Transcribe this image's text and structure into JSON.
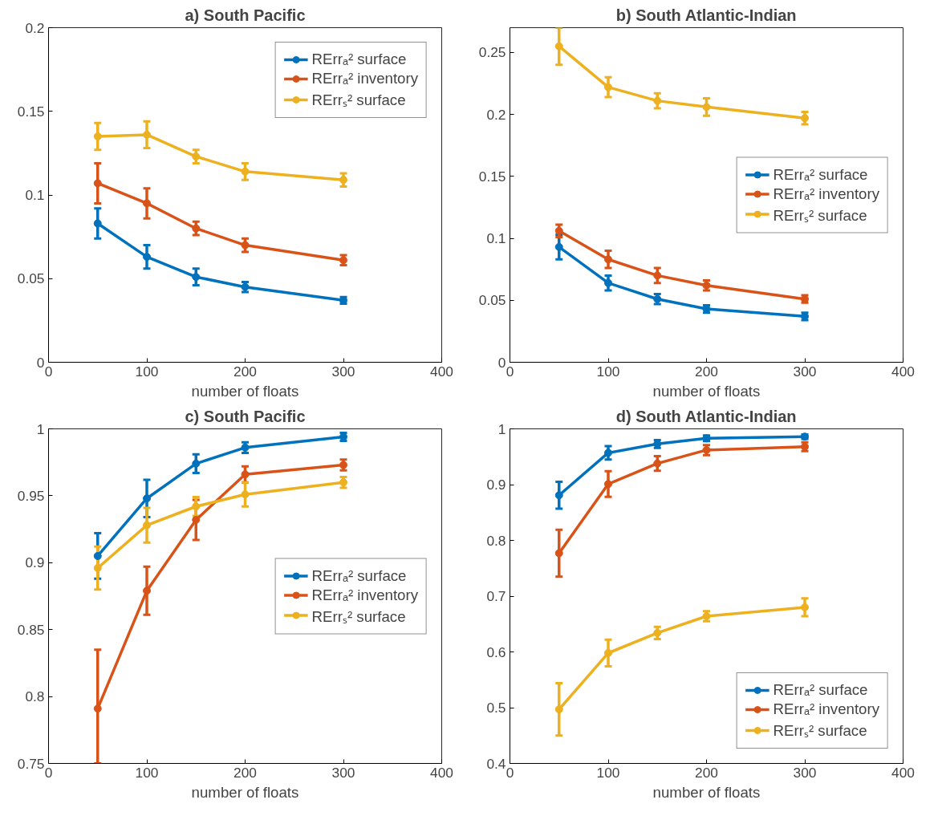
{
  "chart_data": [
    {
      "type": "line",
      "title": "a) South Pacific",
      "xlabel": "number of floats",
      "x": [
        50,
        100,
        150,
        200,
        300
      ],
      "xlim": [
        0,
        400
      ],
      "xticks": [
        0,
        100,
        200,
        300,
        400
      ],
      "ylim": [
        0,
        0.2
      ],
      "yticks": [
        0,
        0.05,
        0.1,
        0.15,
        0.2
      ],
      "marker": "circle",
      "line_style": "solid",
      "grid": false,
      "legend": "top right",
      "series": [
        {
          "name": "RErrₐ² surface",
          "color": "#0072bd",
          "values": [
            0.083,
            0.063,
            0.051,
            0.045,
            0.037
          ],
          "errors": [
            0.009,
            0.007,
            0.005,
            0.003,
            0.002
          ]
        },
        {
          "name": "RErrₐ² inventory",
          "color": "#d95319",
          "values": [
            0.107,
            0.095,
            0.08,
            0.07,
            0.061
          ],
          "errors": [
            0.012,
            0.009,
            0.004,
            0.004,
            0.003
          ]
        },
        {
          "name": "RErrₛ² surface",
          "color": "#edb120",
          "values": [
            0.135,
            0.136,
            0.123,
            0.114,
            0.109
          ],
          "errors": [
            0.008,
            0.008,
            0.004,
            0.005,
            0.004
          ]
        }
      ]
    },
    {
      "type": "line",
      "title": "b) South Atlantic-Indian",
      "xlabel": "number of floats",
      "x": [
        50,
        100,
        150,
        200,
        300
      ],
      "xlim": [
        0,
        400
      ],
      "xticks": [
        0,
        100,
        200,
        300,
        400
      ],
      "ylim": [
        0,
        0.27
      ],
      "yticks": [
        0,
        0.05,
        0.1,
        0.15,
        0.2,
        0.25
      ],
      "marker": "circle",
      "line_style": "solid",
      "grid": false,
      "legend": "right",
      "series": [
        {
          "name": "RErrₐ² surface",
          "color": "#0072bd",
          "values": [
            0.093,
            0.064,
            0.051,
            0.043,
            0.037
          ],
          "errors": [
            0.01,
            0.006,
            0.004,
            0.003,
            0.003
          ]
        },
        {
          "name": "RErrₐ² inventory",
          "color": "#d95319",
          "values": [
            0.106,
            0.083,
            0.07,
            0.062,
            0.051
          ],
          "errors": [
            0.005,
            0.007,
            0.006,
            0.004,
            0.003
          ]
        },
        {
          "name": "RErrₛ² surface",
          "color": "#edb120",
          "values": [
            0.255,
            0.222,
            0.211,
            0.206,
            0.197
          ],
          "errors": [
            0.015,
            0.008,
            0.006,
            0.007,
            0.005
          ]
        }
      ]
    },
    {
      "type": "line",
      "title": "c) South Pacific",
      "xlabel": "number of floats",
      "x": [
        50,
        100,
        150,
        200,
        300
      ],
      "xlim": [
        0,
        400
      ],
      "xticks": [
        0,
        100,
        200,
        300,
        400
      ],
      "ylim": [
        0.75,
        1
      ],
      "yticks": [
        0.75,
        0.8,
        0.85,
        0.9,
        0.95,
        1
      ],
      "marker": "circle",
      "line_style": "solid",
      "grid": false,
      "legend": "right",
      "series": [
        {
          "name": "RErrₐ² surface",
          "color": "#0072bd",
          "values": [
            0.905,
            0.948,
            0.974,
            0.986,
            0.994
          ],
          "errors": [
            0.017,
            0.014,
            0.007,
            0.004,
            0.003
          ]
        },
        {
          "name": "RErrₐ² inventory",
          "color": "#d95319",
          "values": [
            0.791,
            0.879,
            0.932,
            0.966,
            0.973
          ],
          "errors": [
            [
              0.75,
              0.835
            ],
            0.018,
            0.015,
            0.006,
            0.004
          ]
        },
        {
          "name": "RErrₛ² surface",
          "color": "#edb120",
          "values": [
            0.896,
            0.928,
            0.942,
            0.951,
            0.96
          ],
          "errors": [
            0.016,
            0.013,
            0.007,
            0.009,
            0.004
          ]
        }
      ]
    },
    {
      "type": "line",
      "title": "d) South Atlantic-Indian",
      "xlabel": "number of floats",
      "x": [
        50,
        100,
        150,
        200,
        300
      ],
      "xlim": [
        0,
        400
      ],
      "xticks": [
        0,
        100,
        200,
        300,
        400
      ],
      "ylim": [
        0.4,
        1
      ],
      "yticks": [
        0.4,
        0.5,
        0.6,
        0.7,
        0.8,
        0.9,
        1
      ],
      "marker": "circle",
      "line_style": "solid",
      "grid": false,
      "legend": "bottom right",
      "series": [
        {
          "name": "RErrₐ² surface",
          "color": "#0072bd",
          "values": [
            0.881,
            0.957,
            0.973,
            0.983,
            0.986
          ],
          "errors": [
            0.024,
            0.012,
            0.007,
            0.005,
            0.004
          ]
        },
        {
          "name": "RErrₐ² inventory",
          "color": "#d95319",
          "values": [
            0.777,
            0.901,
            0.938,
            0.962,
            0.968
          ],
          "errors": [
            0.042,
            0.023,
            0.013,
            0.009,
            0.008
          ]
        },
        {
          "name": "RErrₛ² surface",
          "color": "#edb120",
          "values": [
            0.497,
            0.598,
            0.634,
            0.664,
            0.68
          ],
          "errors": [
            0.047,
            0.024,
            0.011,
            0.009,
            0.016
          ]
        }
      ]
    }
  ]
}
